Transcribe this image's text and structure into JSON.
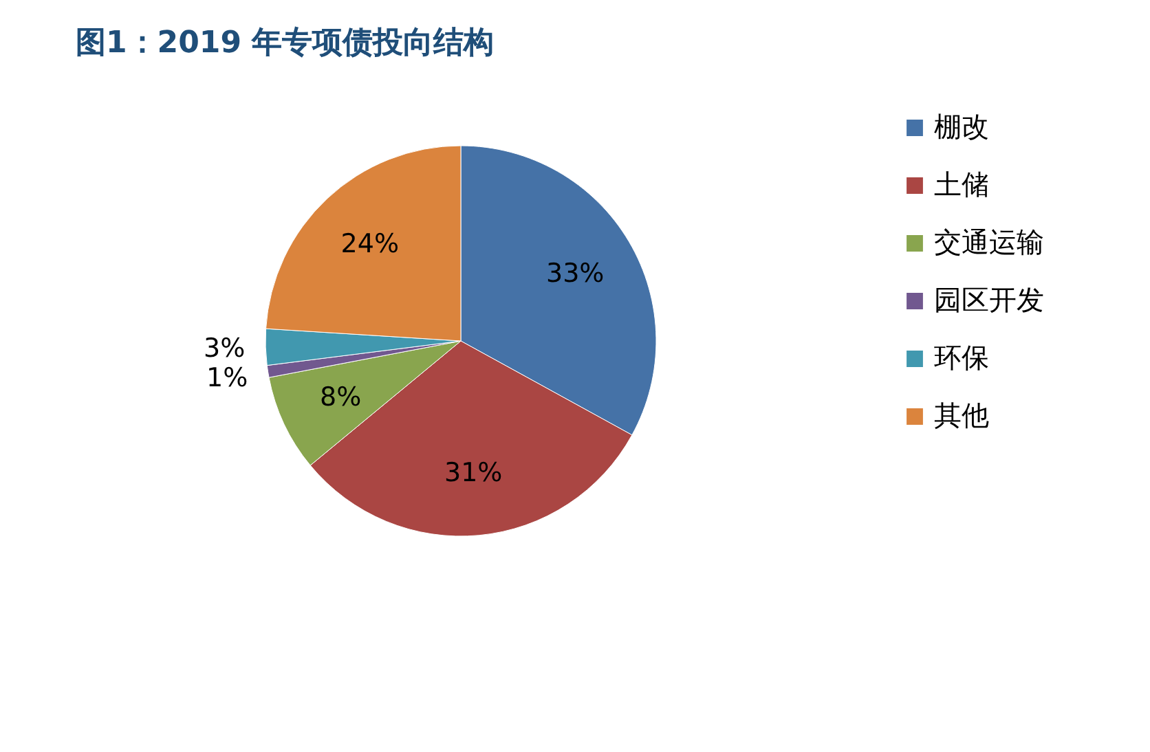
{
  "chart_data": {
    "type": "pie",
    "title": "图1：2019 年专项债投向结构",
    "categories": [
      "棚改",
      "土储",
      "交通运输",
      "园区开发",
      "环保",
      "其他"
    ],
    "values": [
      33,
      31,
      8,
      1,
      3,
      24
    ],
    "colors": [
      "#4572a7",
      "#aa4643",
      "#89a54e",
      "#71588f",
      "#4198af",
      "#db843d"
    ],
    "value_labels": [
      "33%",
      "31%",
      "8%",
      "1%",
      "3%",
      "24%"
    ],
    "legend": "right"
  }
}
